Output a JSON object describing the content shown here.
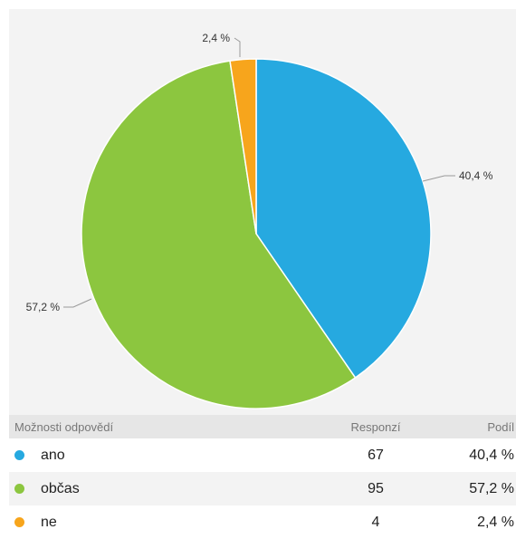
{
  "chart_data": {
    "type": "pie",
    "slices": [
      {
        "label": "ano",
        "value": 40.4,
        "value_label": "40,4 %",
        "color": "#26a9e0"
      },
      {
        "label": "občas",
        "value": 57.2,
        "value_label": "57,2 %",
        "color": "#8cc63f"
      },
      {
        "label": "ne",
        "value": 2.4,
        "value_label": "2,4 %",
        "color": "#f7a51c"
      }
    ]
  },
  "table": {
    "headers": {
      "option": "Možnosti odpovědí",
      "responses": "Responzí",
      "share": "Podíl"
    },
    "rows": [
      {
        "label": "ano",
        "responses": "67",
        "share": "40,4 %",
        "color": "#26a9e0"
      },
      {
        "label": "občas",
        "responses": "95",
        "share": "57,2 %",
        "color": "#8cc63f"
      },
      {
        "label": "ne",
        "responses": "4",
        "share": "2,4 %",
        "color": "#f7a51c"
      }
    ]
  }
}
